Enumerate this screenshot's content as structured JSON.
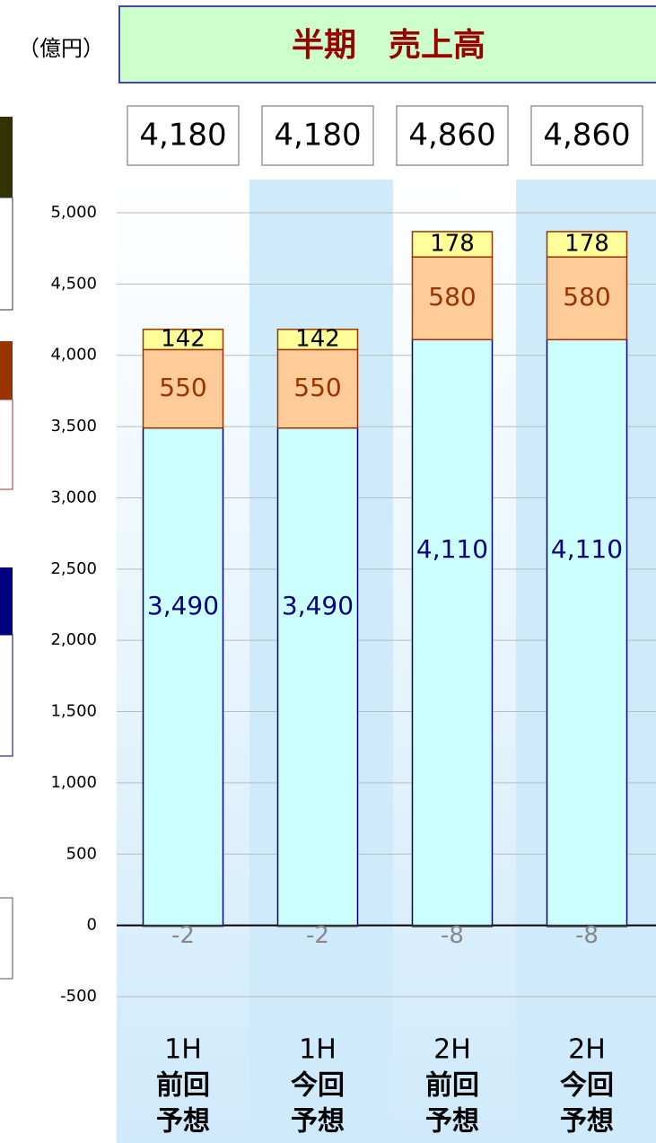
{
  "chart_data": {
    "type": "stacked_bar",
    "title": "半期　売上高",
    "unit": "（億円）",
    "categories": [
      [
        "1H",
        "前回",
        "予想"
      ],
      [
        "1H",
        "今回",
        "予想"
      ],
      [
        "2H",
        "前回",
        "予想"
      ],
      [
        "2H",
        "今回",
        "予想"
      ]
    ],
    "series": [
      {
        "color": "#ccffff",
        "edge": "#000080",
        "label_color": "#000080",
        "values": [
          3490,
          3490,
          4110,
          4110
        ],
        "value_labels": [
          "3,490",
          "3,490",
          "4,110",
          "4,110"
        ]
      },
      {
        "color": "#ffcc99",
        "edge": "#993300",
        "label_color": "#993300",
        "values": [
          550,
          550,
          580,
          580
        ]
      },
      {
        "color": "#ffff99",
        "edge": "#993300",
        "label_color": "#000000",
        "values": [
          142,
          142,
          178,
          178
        ]
      },
      {
        "color": "#333333",
        "edge": "#333333",
        "label_color": "#888888",
        "values": [
          -2,
          -2,
          -8,
          -8
        ]
      }
    ],
    "totals": [
      4180,
      4180,
      4860,
      4860
    ],
    "total_labels": [
      "4,180",
      "4,180",
      "4,860",
      "4,860"
    ],
    "ylim": [
      -500,
      5000
    ],
    "yticks": [
      -500,
      0,
      {
        "value": 500,
        "label": "500"
      },
      {
        "value": 1000,
        "label": "1,000"
      },
      {
        "value": 1500,
        "label": "1,500"
      },
      {
        "value": 2000,
        "label": "2,000"
      },
      {
        "value": 2500,
        "label": "2,500"
      },
      {
        "value": 3000,
        "label": "3,000"
      },
      {
        "value": 3500,
        "label": "3,500"
      },
      {
        "value": 4000,
        "label": "4,000"
      },
      {
        "value": 4500,
        "label": "4,500"
      },
      {
        "value": 5000,
        "label": "5,000"
      }
    ],
    "grid": true
  }
}
